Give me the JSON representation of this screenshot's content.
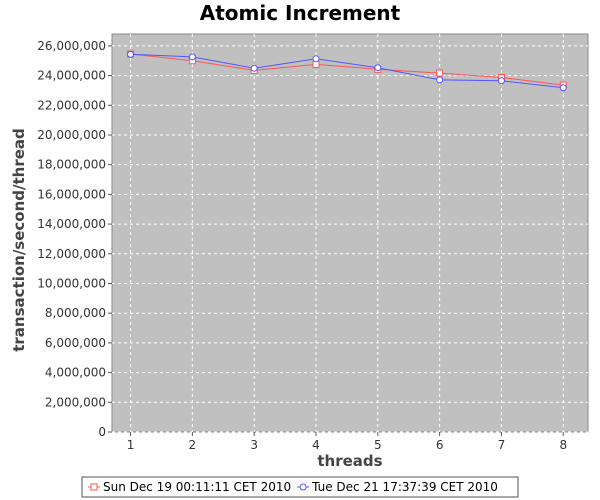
{
  "chart_data": {
    "type": "line",
    "title": "Atomic Increment",
    "xlabel": "threads",
    "ylabel": "transaction/second/thread",
    "x": [
      1,
      2,
      3,
      4,
      5,
      6,
      7,
      8
    ],
    "x_tick_labels": [
      "1",
      "2",
      "3",
      "4",
      "5",
      "6",
      "7",
      "8"
    ],
    "xlim": [
      0.7,
      8.4
    ],
    "ylim": [
      0,
      26800000
    ],
    "y_ticks": [
      0,
      2000000,
      4000000,
      6000000,
      8000000,
      10000000,
      12000000,
      14000000,
      16000000,
      18000000,
      20000000,
      22000000,
      24000000,
      26000000
    ],
    "y_tick_labels": [
      "0",
      "2,000,000",
      "4,000,000",
      "6,000,000",
      "8,000,000",
      "10,000,000",
      "12,000,000",
      "14,000,000",
      "16,000,000",
      "18,000,000",
      "20,000,000",
      "22,000,000",
      "24,000,000",
      "26,000,000"
    ],
    "grid": true,
    "legend_position": "bottom",
    "series": [
      {
        "name": "Sun Dec 19 00:11:11 CET 2010",
        "color": "#ff5555",
        "marker": "square",
        "values": [
          25450000,
          25000000,
          24350000,
          24750000,
          24420000,
          24170000,
          23870000,
          23360000
        ]
      },
      {
        "name": "Tue Dec 21 17:37:39 CET 2010",
        "color": "#5555ff",
        "marker": "circle",
        "values": [
          25430000,
          25260000,
          24490000,
          25130000,
          24530000,
          23710000,
          23650000,
          23180000
        ]
      }
    ],
    "colors": {
      "plot_background": "#c0c0c0",
      "grid": "#ffffff"
    }
  }
}
